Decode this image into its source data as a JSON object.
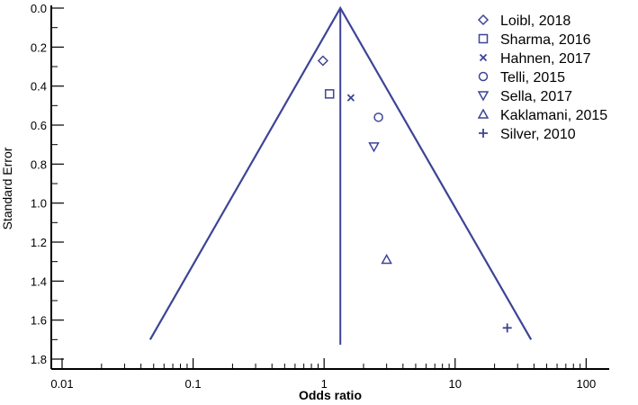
{
  "chart_data": {
    "type": "scatter",
    "title": "",
    "xlabel": "Odds ratio",
    "ylabel": "Standard Error",
    "x_scale": "log",
    "xlim": [
      0.01,
      150
    ],
    "ylim": [
      0.0,
      1.8
    ],
    "y_inverted": true,
    "x_ticks": [
      "0.01",
      "0.1",
      "1",
      "10",
      "100"
    ],
    "y_ticks": [
      "0.0",
      "0.2",
      "0.4",
      "0.6",
      "0.8",
      "1.0",
      "1.2",
      "1.4",
      "1.6",
      "1.8"
    ],
    "pooled_estimate": 1.33,
    "funnel": {
      "apex": [
        1.33,
        0.0
      ],
      "left_base": [
        0.047,
        1.7
      ],
      "right_base": [
        38,
        1.7
      ]
    },
    "legend_position": "top-right",
    "line_color": "#3d4496",
    "series": [
      {
        "name": "Loibl, 2018",
        "marker": "diamond",
        "x": 0.98,
        "y": 0.27
      },
      {
        "name": "Sharma, 2016",
        "marker": "square",
        "x": 1.1,
        "y": 0.44
      },
      {
        "name": "Hahnen, 2017",
        "marker": "x",
        "x": 1.6,
        "y": 0.46
      },
      {
        "name": "Telli, 2015",
        "marker": "circle",
        "x": 2.6,
        "y": 0.56
      },
      {
        "name": "Sella, 2017",
        "marker": "triangle-down",
        "x": 2.4,
        "y": 0.71
      },
      {
        "name": "Kaklamani, 2015",
        "marker": "triangle-up",
        "x": 3.0,
        "y": 1.29
      },
      {
        "name": "Silver, 2010",
        "marker": "plus",
        "x": 25.0,
        "y": 1.64
      }
    ]
  }
}
